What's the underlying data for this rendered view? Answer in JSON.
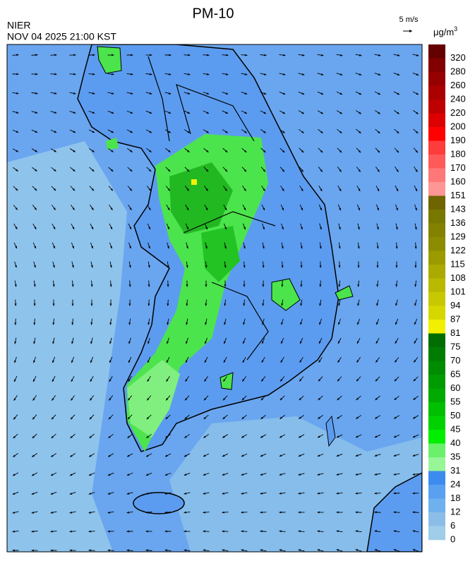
{
  "header": {
    "title": "PM-10",
    "agency": "NIER",
    "datetime": "NOV 04 2025 21:00 KST",
    "wind_scale": "5 m/s",
    "unit": "μg/m",
    "unit_sup": "3"
  },
  "legend": {
    "labels": [
      320,
      280,
      260,
      240,
      220,
      200,
      190,
      180,
      170,
      160,
      151,
      143,
      136,
      129,
      122,
      115,
      108,
      101,
      94,
      87,
      81,
      75,
      70,
      65,
      60,
      55,
      50,
      45,
      40,
      35,
      31,
      24,
      18,
      12,
      6,
      0
    ],
    "colors": [
      "#640000",
      "#820000",
      "#960000",
      "#aa0000",
      "#be0000",
      "#dc0000",
      "#ff0000",
      "#ff3c3c",
      "#ff5a5a",
      "#ff7878",
      "#ff9696",
      "#6e6400",
      "#787800",
      "#828200",
      "#8c8c00",
      "#9b9b00",
      "#aaaa00",
      "#b9b900",
      "#c8c800",
      "#d7d700",
      "#f0f000",
      "#006e00",
      "#007d00",
      "#008c00",
      "#009b00",
      "#00aa00",
      "#00be00",
      "#00d200",
      "#00ee00",
      "#6af06a",
      "#98f598",
      "#3c8cf0",
      "#5aa0f0",
      "#6fb0ee",
      "#8cbde8",
      "#a0cde8"
    ]
  }
}
